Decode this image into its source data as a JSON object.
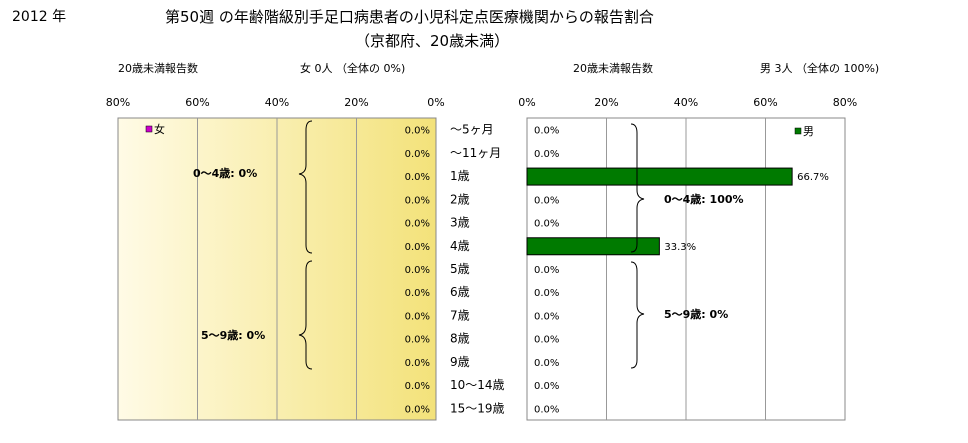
{
  "header": {
    "year": "2012 年",
    "title_line1": "第50週 の年齢階級別手足口病患者の小児科定点医療機関からの報告割合",
    "title_line2": "（京都府、20歳未満）",
    "left_sub_label": "20歳未満報告数",
    "left_count": "女  0人 （全体の   0%)",
    "right_sub_label": "20歳未満報告数",
    "right_count": "男  3人 （全体の   100%)"
  },
  "chart_data": {
    "type": "bar",
    "categories": [
      "～5ヶ月",
      "～11ヶ月",
      "1歳",
      "2歳",
      "3歳",
      "4歳",
      "5歳",
      "6歳",
      "7歳",
      "8歳",
      "9歳",
      "10～14歳",
      "15～19歳"
    ],
    "series": [
      {
        "name": "女",
        "values": [
          0,
          0,
          0,
          0,
          0,
          0,
          0,
          0,
          0,
          0,
          0,
          0,
          0
        ],
        "labels": [
          "0.0%",
          "0.0%",
          "0.0%",
          "0.0%",
          "0.0%",
          "0.0%",
          "0.0%",
          "0.0%",
          "0.0%",
          "0.0%",
          "0.0%",
          "0.0%",
          "0.0%"
        ],
        "color": "#cc00cc"
      },
      {
        "name": "男",
        "values": [
          0,
          0,
          66.7,
          0,
          0,
          33.3,
          0,
          0,
          0,
          0,
          0,
          0,
          0
        ],
        "labels": [
          "0.0%",
          "0.0%",
          "66.7%",
          "0.0%",
          "0.0%",
          "33.3%",
          "0.0%",
          "0.0%",
          "0.0%",
          "0.0%",
          "0.0%",
          "0.0%",
          "0.0%"
        ],
        "color": "#007a00"
      }
    ],
    "xlim": [
      0,
      80
    ],
    "x_ticks": [
      "80%",
      "60%",
      "40%",
      "20%",
      "0%"
    ],
    "x_ticks_right": [
      "0%",
      "20%",
      "40%",
      "60%",
      "80%"
    ],
    "left_gradient": [
      "#fffbe6",
      "#f3e27a"
    ],
    "right_background": "#ffffff",
    "annotations": {
      "female_0_4": "0～4歳:   0%",
      "female_5_9": "5～9歳:   0%",
      "male_0_4": "0～4歳: 100%",
      "male_5_9": "5～9歳:   0%"
    }
  }
}
